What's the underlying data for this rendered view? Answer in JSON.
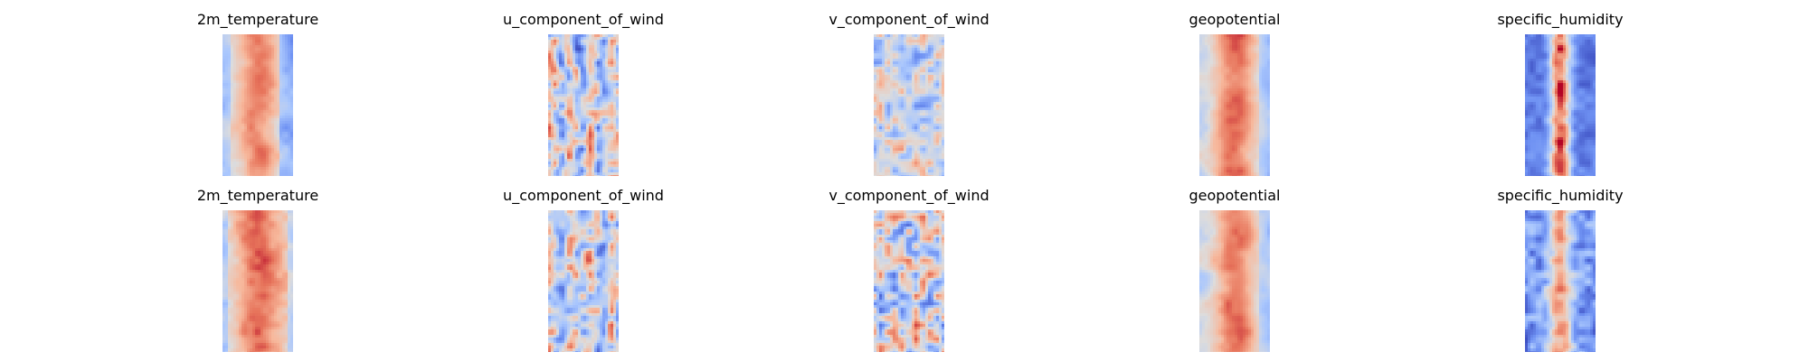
{
  "chart_data": {
    "type": "heatmap",
    "colormap": "coolwarm",
    "colormap_stops": [
      "#3b4cc0",
      "#6f92f3",
      "#aac7fd",
      "#dddcdc",
      "#f7b89c",
      "#e7745b",
      "#b40426"
    ],
    "axes_visible": false,
    "grid": false,
    "rows": [
      {
        "panels": [
          {
            "title": "2m_temperature",
            "pattern": "warm_band",
            "seed": 11
          },
          {
            "title": "u_component_of_wind",
            "pattern": "neutral_streaks",
            "seed": 23
          },
          {
            "title": "v_component_of_wind",
            "pattern": "neutral_swirls",
            "seed": 37
          },
          {
            "title": "geopotential",
            "pattern": "warm_band_wide",
            "seed": 41
          },
          {
            "title": "specific_humidity",
            "pattern": "cold_with_warm_core",
            "seed": 53
          }
        ]
      },
      {
        "panels": [
          {
            "title": "2m_temperature",
            "pattern": "warm_band_strong",
            "seed": 67
          },
          {
            "title": "u_component_of_wind",
            "pattern": "neutral_streaks",
            "seed": 71
          },
          {
            "title": "v_component_of_wind",
            "pattern": "neutral_swirls_strong",
            "seed": 83
          },
          {
            "title": "geopotential",
            "pattern": "warm_band_wide",
            "seed": 97
          },
          {
            "title": "specific_humidity",
            "pattern": "cold_with_warm_core_soft",
            "seed": 101
          }
        ]
      }
    ]
  }
}
